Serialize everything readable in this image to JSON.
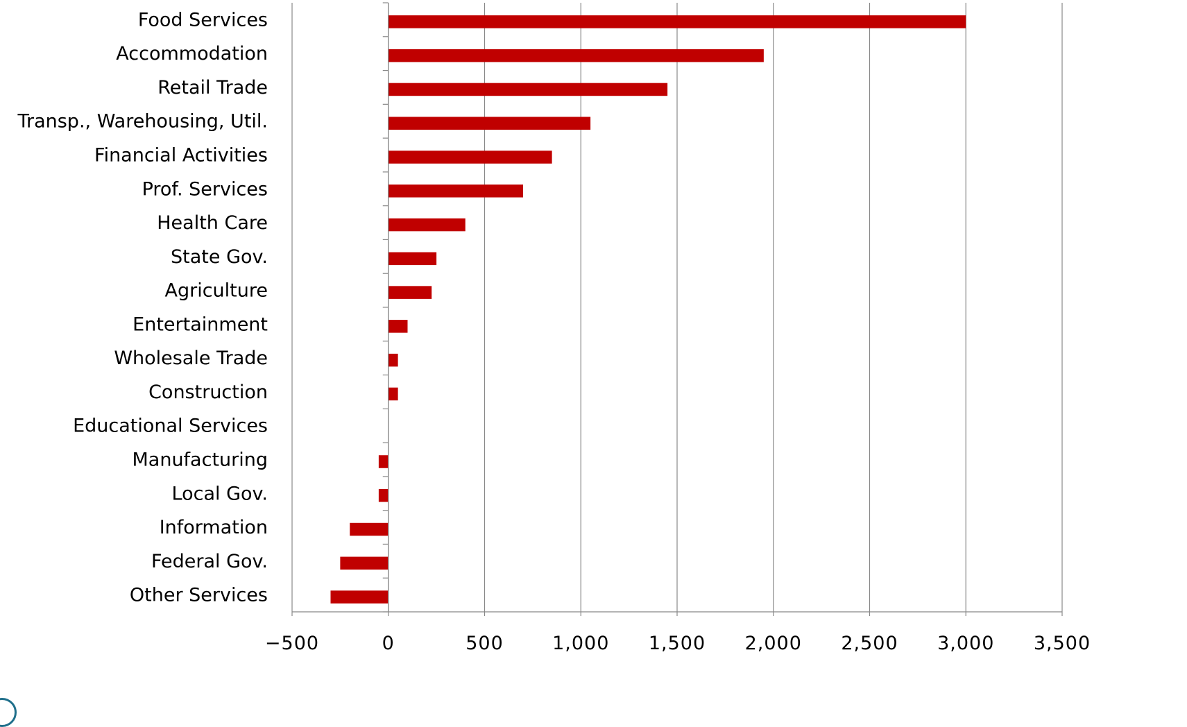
{
  "chart_data": {
    "type": "bar",
    "orientation": "horizontal",
    "title": "",
    "xlabel": "",
    "ylabel": "",
    "xlim": [
      -500,
      3500
    ],
    "xticks": [
      -500,
      0,
      500,
      1000,
      1500,
      2000,
      2500,
      3000,
      3500
    ],
    "xtick_labels": [
      "−500",
      "0",
      "500",
      "1,000",
      "1,500",
      "2,000",
      "2,500",
      "3,000",
      "3,500"
    ],
    "grid": true,
    "bar_color": "#c00000",
    "grid_color": "#888888",
    "categories": [
      "Food Services",
      "Accommodation",
      "Retail Trade",
      "Transp., Warehousing, Util.",
      "Financial Activities",
      "Prof. Services",
      "Health Care",
      "State Gov.",
      "Agriculture",
      "Entertainment",
      "Wholesale Trade",
      "Construction",
      "Educational Services",
      "Manufacturing",
      "Local Gov.",
      "Information",
      "Federal Gov.",
      "Other Services"
    ],
    "values": [
      3000,
      1950,
      1450,
      1050,
      850,
      700,
      400,
      250,
      225,
      100,
      50,
      50,
      0,
      -50,
      -50,
      -200,
      -250,
      -300
    ]
  }
}
